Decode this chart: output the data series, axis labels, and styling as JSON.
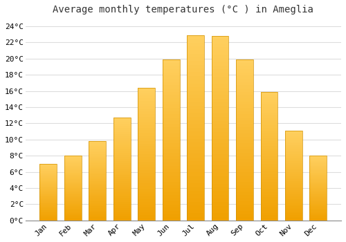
{
  "title": "Average monthly temperatures (°C ) in Ameglia",
  "months": [
    "Jan",
    "Feb",
    "Mar",
    "Apr",
    "May",
    "Jun",
    "Jul",
    "Aug",
    "Sep",
    "Oct",
    "Nov",
    "Dec"
  ],
  "temperatures": [
    7,
    8,
    9.8,
    12.7,
    16.4,
    19.9,
    22.9,
    22.8,
    19.9,
    15.9,
    11.1,
    8
  ],
  "bar_color_top": "#FFD060",
  "bar_color_bottom": "#F0A000",
  "bar_edge_color": "#D09000",
  "background_color": "#FFFFFF",
  "plot_bg_color": "#FFFFFF",
  "grid_color": "#DDDDDD",
  "ylim": [
    0,
    25
  ],
  "yticks": [
    0,
    2,
    4,
    6,
    8,
    10,
    12,
    14,
    16,
    18,
    20,
    22,
    24
  ],
  "title_fontsize": 10,
  "tick_fontsize": 8,
  "figsize": [
    5.0,
    3.5
  ],
  "dpi": 100
}
